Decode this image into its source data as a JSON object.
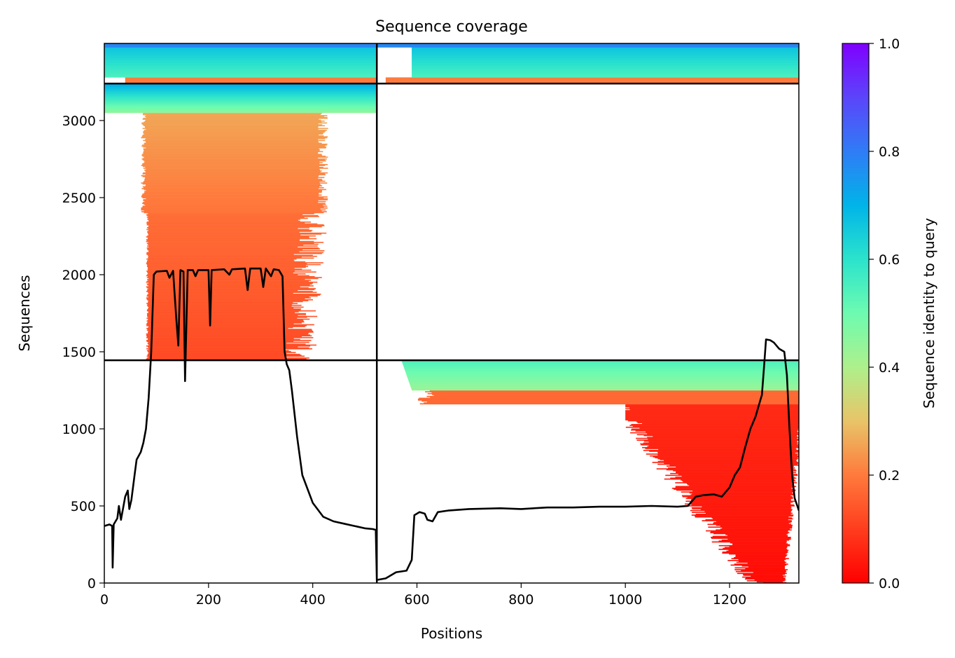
{
  "chart_data": {
    "type": "heatmap",
    "title": "Sequence coverage",
    "xlabel": "Positions",
    "ylabel": "Sequences",
    "xlim": [
      0,
      1333
    ],
    "ylim": [
      0,
      3500
    ],
    "x_ticks": [
      0,
      200,
      400,
      600,
      800,
      1000,
      1200
    ],
    "y_ticks": [
      0,
      500,
      1000,
      1500,
      2000,
      2500,
      3000
    ],
    "grid": false,
    "colorbar": {
      "label": "Sequence identity to query",
      "range": [
        0,
        1
      ],
      "ticks": [
        0.0,
        0.2,
        0.4,
        0.6,
        0.8,
        1.0
      ],
      "colormap": "rainbow_r"
    },
    "domain_boundary_x": 523,
    "sequence_block_boundaries_y": [
      1445,
      3240
    ],
    "coverage_line": [
      [
        0,
        370
      ],
      [
        10,
        380
      ],
      [
        15,
        370
      ],
      [
        16,
        100
      ],
      [
        18,
        380
      ],
      [
        25,
        420
      ],
      [
        28,
        500
      ],
      [
        32,
        410
      ],
      [
        40,
        560
      ],
      [
        45,
        600
      ],
      [
        48,
        480
      ],
      [
        52,
        540
      ],
      [
        58,
        700
      ],
      [
        62,
        800
      ],
      [
        70,
        850
      ],
      [
        75,
        910
      ],
      [
        80,
        1000
      ],
      [
        85,
        1200
      ],
      [
        90,
        1500
      ],
      [
        95,
        2000
      ],
      [
        100,
        2020
      ],
      [
        120,
        2025
      ],
      [
        125,
        1980
      ],
      [
        132,
        2025
      ],
      [
        138,
        1720
      ],
      [
        142,
        1540
      ],
      [
        146,
        2030
      ],
      [
        152,
        2020
      ],
      [
        155,
        1310
      ],
      [
        160,
        2030
      ],
      [
        170,
        2030
      ],
      [
        175,
        1990
      ],
      [
        180,
        2030
      ],
      [
        200,
        2030
      ],
      [
        203,
        1670
      ],
      [
        206,
        2030
      ],
      [
        230,
        2035
      ],
      [
        240,
        2000
      ],
      [
        245,
        2035
      ],
      [
        270,
        2040
      ],
      [
        275,
        1900
      ],
      [
        280,
        2040
      ],
      [
        300,
        2040
      ],
      [
        305,
        1920
      ],
      [
        310,
        2040
      ],
      [
        320,
        1990
      ],
      [
        325,
        2035
      ],
      [
        335,
        2030
      ],
      [
        342,
        1990
      ],
      [
        346,
        1500
      ],
      [
        350,
        1420
      ],
      [
        355,
        1380
      ],
      [
        360,
        1250
      ],
      [
        370,
        950
      ],
      [
        380,
        700
      ],
      [
        400,
        520
      ],
      [
        420,
        430
      ],
      [
        440,
        400
      ],
      [
        460,
        385
      ],
      [
        480,
        370
      ],
      [
        500,
        355
      ],
      [
        515,
        350
      ],
      [
        521,
        345
      ],
      [
        523,
        20
      ],
      [
        540,
        30
      ],
      [
        560,
        70
      ],
      [
        580,
        80
      ],
      [
        590,
        150
      ],
      [
        595,
        440
      ],
      [
        605,
        460
      ],
      [
        615,
        450
      ],
      [
        620,
        410
      ],
      [
        630,
        400
      ],
      [
        640,
        460
      ],
      [
        660,
        470
      ],
      [
        700,
        480
      ],
      [
        760,
        485
      ],
      [
        800,
        480
      ],
      [
        850,
        490
      ],
      [
        900,
        490
      ],
      [
        950,
        495
      ],
      [
        1000,
        495
      ],
      [
        1050,
        500
      ],
      [
        1100,
        495
      ],
      [
        1120,
        500
      ],
      [
        1135,
        560
      ],
      [
        1150,
        570
      ],
      [
        1170,
        575
      ],
      [
        1185,
        560
      ],
      [
        1200,
        620
      ],
      [
        1210,
        700
      ],
      [
        1220,
        750
      ],
      [
        1230,
        880
      ],
      [
        1240,
        1000
      ],
      [
        1250,
        1080
      ],
      [
        1255,
        1140
      ],
      [
        1262,
        1220
      ],
      [
        1265,
        1350
      ],
      [
        1270,
        1580
      ],
      [
        1278,
        1575
      ],
      [
        1285,
        1560
      ],
      [
        1295,
        1520
      ],
      [
        1305,
        1500
      ],
      [
        1310,
        1350
      ],
      [
        1315,
        1000
      ],
      [
        1320,
        700
      ],
      [
        1325,
        550
      ],
      [
        1330,
        500
      ],
      [
        1333,
        470
      ]
    ]
  }
}
